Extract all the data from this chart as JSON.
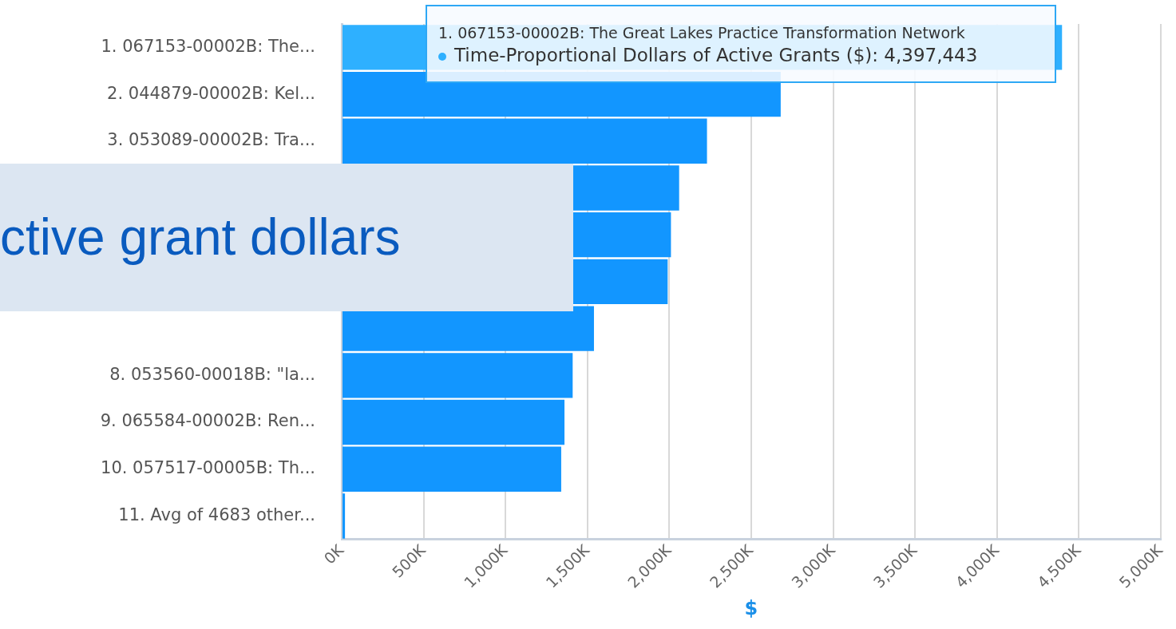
{
  "chart_data": {
    "type": "bar",
    "orientation": "horizontal",
    "title": "ctive grant dollars",
    "xlabel": "$",
    "categories": [
      "1. 067153-00002B: The...",
      "2. 044879-00002B: Kel...",
      "3. 053089-00002B: Tra...",
      null,
      null,
      null,
      null,
      "8. 053560-00018B: \"la...",
      "9. 065584-00002B: Ren...",
      "10. 057517-00005B: Th...",
      "11. Avg of 4683 other..."
    ],
    "values": [
      4397443,
      2680000,
      2230000,
      2060000,
      2010000,
      1990000,
      1540000,
      1410000,
      1360000,
      1340000,
      20000
    ],
    "colors": [
      "#2eb0ff",
      "#1296ff",
      "#1296ff",
      "#1296ff",
      "#1296ff",
      "#1296ff",
      "#1296ff",
      "#1296ff",
      "#1296ff",
      "#1296ff",
      "#1296ff"
    ],
    "xlim": [
      0,
      5000000
    ],
    "xticks": [
      {
        "value": 0,
        "label": "0K"
      },
      {
        "value": 500000,
        "label": "500K"
      },
      {
        "value": 1000000,
        "label": "1,000K"
      },
      {
        "value": 1500000,
        "label": "1,500K"
      },
      {
        "value": 2000000,
        "label": "2,000K"
      },
      {
        "value": 2500000,
        "label": "2,500K"
      },
      {
        "value": 3000000,
        "label": "3,000K"
      },
      {
        "value": 3500000,
        "label": "3,500K"
      },
      {
        "value": 4000000,
        "label": "4,000K"
      },
      {
        "value": 4500000,
        "label": "4,500K"
      },
      {
        "value": 5000000,
        "label": "5,000K"
      }
    ],
    "grid": "x",
    "legend": false,
    "annotations": [
      "1. 067153-00002B: The Great Lakes Practice Transformation Network",
      "Time-Proportional Dollars of Active Grants ($): 4,397,443"
    ]
  }
}
